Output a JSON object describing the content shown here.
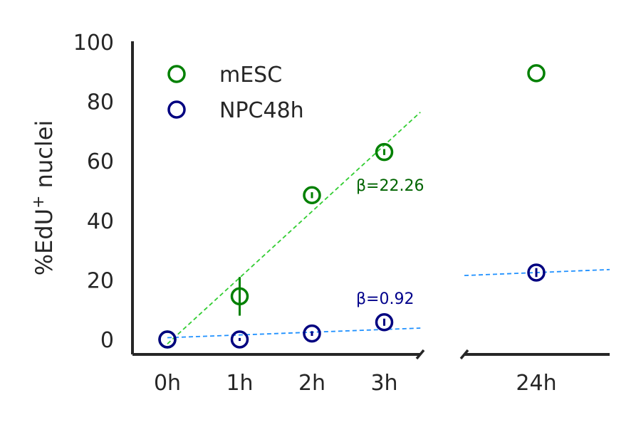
{
  "chart_data": {
    "type": "scatter",
    "title": "",
    "xlabel": "",
    "ylabel": "%EdU",
    "ylabel_superscript": "+",
    "ylabel_suffix": "nuclei",
    "categories": [
      "0h",
      "1h",
      "2h",
      "3h",
      "24h"
    ],
    "x_hours": [
      0,
      1,
      2,
      3,
      24
    ],
    "ylim": [
      0,
      100
    ],
    "yticks": [
      0,
      20,
      40,
      60,
      80,
      100
    ],
    "broken_x_axis": true,
    "legend_position": "top-left",
    "series": [
      {
        "name": "mESC",
        "color": "#008000",
        "values": [
          0,
          14.5,
          48.5,
          63,
          89.5
        ],
        "errors": [
          0,
          6.5,
          1.0,
          1.0,
          0
        ],
        "fit": {
          "slope_label": "β=22.26",
          "slope": 22.26,
          "intercept": -1.5,
          "x_range": [
            0,
            3.5
          ],
          "color": "#32cd32",
          "label_color": "#006400"
        },
        "fit_24h": null
      },
      {
        "name": "NPC48h",
        "color": "#000080",
        "values": [
          0,
          0,
          2,
          5.8,
          22.5
        ],
        "errors": [
          0,
          0.5,
          0.8,
          1.2,
          1.5
        ],
        "fit": {
          "slope_label": "β=0.92",
          "slope": 0.92,
          "intercept": 0.6,
          "x_range": [
            0,
            3.5
          ],
          "color": "#1e90ff",
          "label_color": "#00008b"
        },
        "fit_24h": {
          "start_value": 21.5,
          "end_value": 23.5,
          "color": "#1e90ff"
        }
      }
    ]
  }
}
